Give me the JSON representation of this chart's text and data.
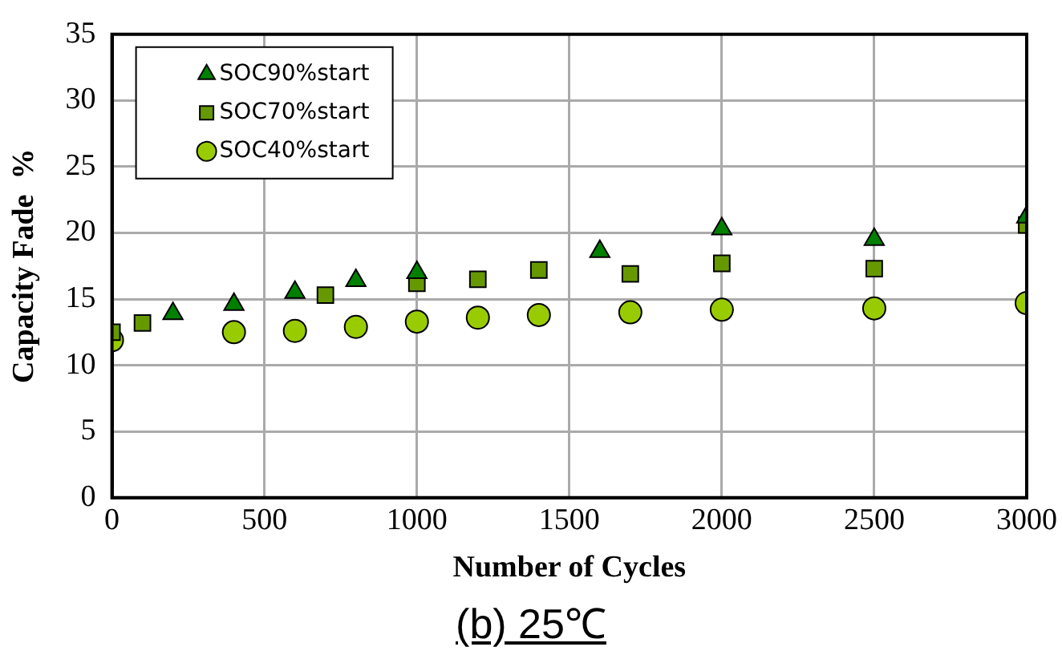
{
  "chart_data": {
    "type": "scatter",
    "title": "(b) 25℃",
    "xlabel": "Number of Cycles",
    "ylabel": "Capacity Fade  %",
    "xlim": [
      0,
      3000
    ],
    "xticks": [
      0,
      500,
      1000,
      1500,
      2000,
      2500,
      3000
    ],
    "ylim": [
      0,
      35
    ],
    "yticks": [
      0,
      5,
      10,
      15,
      20,
      25,
      30,
      35
    ],
    "grid": true,
    "legend": "top left",
    "series": [
      {
        "name": "SOC90%start",
        "color": "#008000",
        "marker": "triangle",
        "x": [
          200,
          400,
          600,
          800,
          1000,
          1600,
          2000,
          2500,
          3000
        ],
        "values": [
          13.9,
          14.6,
          15.5,
          16.4,
          17.0,
          18.6,
          20.3,
          19.5,
          21.2
        ]
      },
      {
        "name": "SOC70%start",
        "color": "#669900",
        "marker": "square",
        "x": [
          0,
          100,
          700,
          1000,
          1200,
          1400,
          1700,
          2000,
          2500,
          3000
        ],
        "values": [
          12.5,
          13.2,
          15.3,
          16.2,
          16.5,
          17.2,
          16.9,
          17.7,
          17.3,
          20.6
        ]
      },
      {
        "name": "SOC40%start",
        "color": "#99cc00",
        "marker": "circle",
        "x": [
          0,
          400,
          600,
          800,
          1000,
          1200,
          1400,
          1700,
          2000,
          2500,
          3000
        ],
        "values": [
          11.9,
          12.5,
          12.6,
          12.9,
          13.3,
          13.6,
          13.8,
          14.0,
          14.2,
          14.3,
          14.7
        ]
      }
    ]
  }
}
